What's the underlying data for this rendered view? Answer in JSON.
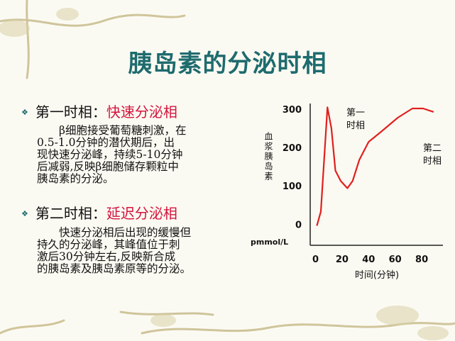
{
  "title": "胰岛素的分泌时相",
  "sections": [
    {
      "label": "第一时相：",
      "highlight": "快速分泌相",
      "lines": [
        "β细胞接受葡萄糖刺激，在",
        "0.5-1.0分钟的潜伏期后，出",
        "现快速分泌峰，持续5-10分钟",
        "后减弱,反映β细胞储存颗粒中",
        "胰岛素的分泌。"
      ]
    },
    {
      "label": "第二时相：",
      "highlight": "延迟分泌相",
      "lines": [
        "快速分泌相后出现的缓慢但",
        "持久的分泌峰，其峰值位于刺",
        "激后30分钟左右,反映新合成",
        "的胰岛素及胰岛素原等的分泌。"
      ]
    }
  ],
  "chart_data": {
    "type": "line",
    "y_label": "血浆胰岛素",
    "y_unit": "pmmol/L",
    "x_label": "时间(分钟)",
    "annotations": [
      {
        "lines": [
          "第一",
          "时相"
        ]
      },
      {
        "lines": [
          "第二",
          "时相"
        ]
      }
    ],
    "x": [
      1,
      4,
      9,
      12,
      15,
      19,
      24,
      28,
      33,
      40,
      49,
      62,
      73,
      81,
      89
    ],
    "series": [
      {
        "color": "#e0201e",
        "values": [
          -4,
          33,
          305,
          250,
          140,
          113,
          94,
          113,
          168,
          215,
          240,
          278,
          302,
          302,
          293
        ]
      }
    ],
    "xlim": [
      -4,
      96
    ],
    "ylim": [
      -55,
      315
    ],
    "xticks": [
      0,
      20,
      40,
      60,
      80
    ],
    "yticks": [
      0,
      100,
      200,
      300
    ],
    "grid": false
  }
}
